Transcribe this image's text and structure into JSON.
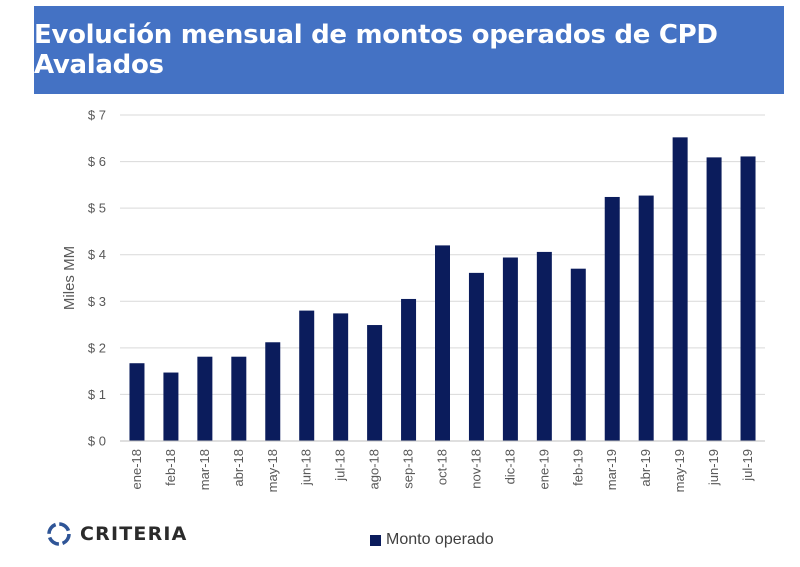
{
  "header": {
    "title": "Evolución mensual de montos operados de CPD Avalados"
  },
  "branding": {
    "logo_text": "CRITERIA",
    "logo_color": "#2f5597"
  },
  "legend": {
    "label": "Monto operado",
    "color": "#0b1c5c"
  },
  "chart_data": {
    "type": "bar",
    "title": "Evolución mensual de montos operados de CPD Avalados",
    "xlabel": "",
    "ylabel": "Miles MM",
    "ylim": [
      0,
      7
    ],
    "yticks": [
      0,
      1,
      2,
      3,
      4,
      5,
      6,
      7
    ],
    "ytick_labels": [
      "$ 0",
      "$ 1",
      "$ 2",
      "$ 3",
      "$ 4",
      "$ 5",
      "$ 6",
      "$ 7"
    ],
    "grid": true,
    "legend_position": "bottom",
    "bar_color": "#0b1c5c",
    "categories": [
      "ene-18",
      "feb-18",
      "mar-18",
      "abr-18",
      "may-18",
      "jun-18",
      "jul-18",
      "ago-18",
      "sep-18",
      "oct-18",
      "nov-18",
      "dic-18",
      "ene-19",
      "feb-19",
      "mar-19",
      "abr-19",
      "may-19",
      "jun-19",
      "jul-19"
    ],
    "series": [
      {
        "name": "Monto operado",
        "values": [
          1.67,
          1.47,
          1.81,
          1.81,
          2.12,
          2.8,
          2.74,
          2.49,
          3.05,
          4.2,
          3.61,
          3.94,
          4.06,
          3.7,
          5.24,
          5.27,
          6.52,
          6.09,
          6.11
        ]
      }
    ]
  }
}
